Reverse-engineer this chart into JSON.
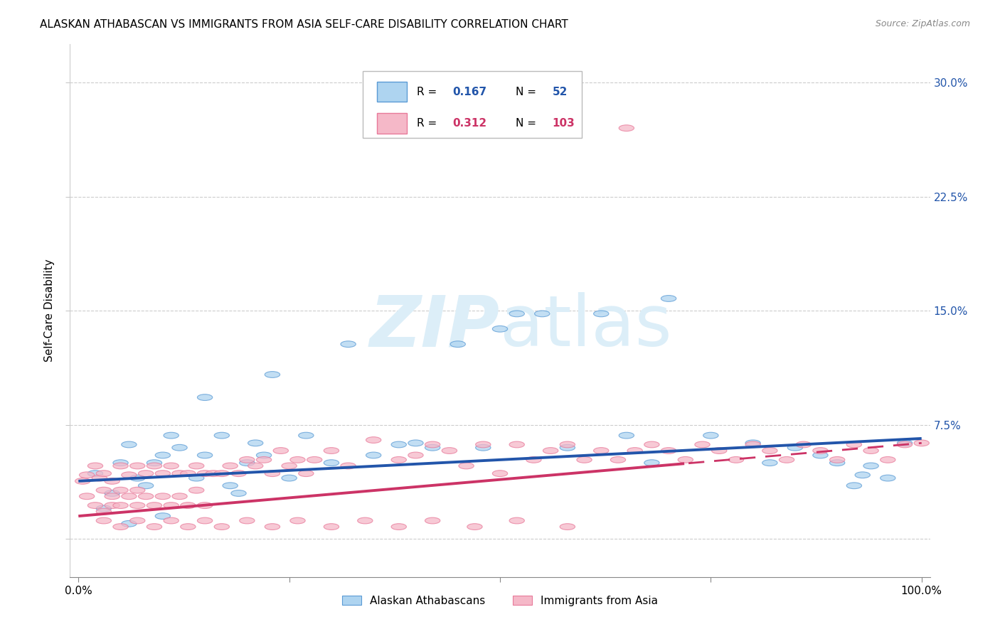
{
  "title": "ALASKAN ATHABASCAN VS IMMIGRANTS FROM ASIA SELF-CARE DISABILITY CORRELATION CHART",
  "source": "Source: ZipAtlas.com",
  "ylabel": "Self-Care Disability",
  "xlim": [
    -0.01,
    1.01
  ],
  "ylim": [
    -0.025,
    0.325
  ],
  "yticks": [
    0.0,
    0.075,
    0.15,
    0.225,
    0.3
  ],
  "ytick_labels_right": [
    "",
    "7.5%",
    "15.0%",
    "22.5%",
    "30.0%"
  ],
  "xticks": [
    0.0,
    0.25,
    0.5,
    0.75,
    1.0
  ],
  "xtick_labels": [
    "0.0%",
    "",
    "",
    "",
    "100.0%"
  ],
  "blue_R": 0.167,
  "blue_N": 52,
  "pink_R": 0.312,
  "pink_N": 103,
  "blue_color": "#aed4f0",
  "pink_color": "#f5b8c8",
  "blue_edge_color": "#5b9bd5",
  "pink_edge_color": "#e87a9a",
  "blue_line_color": "#2255aa",
  "pink_line_color": "#cc3366",
  "watermark_color": "#dceef8",
  "legend_label_blue": "Alaskan Athabascans",
  "legend_label_pink": "Immigrants from Asia",
  "blue_line_intercept": 0.038,
  "blue_line_slope": 0.028,
  "pink_line_intercept": 0.015,
  "pink_line_slope": 0.048,
  "blue_scatter_x": [
    0.02,
    0.03,
    0.04,
    0.05,
    0.06,
    0.06,
    0.07,
    0.08,
    0.09,
    0.1,
    0.1,
    0.11,
    0.12,
    0.14,
    0.15,
    0.15,
    0.17,
    0.18,
    0.19,
    0.2,
    0.21,
    0.22,
    0.23,
    0.25,
    0.27,
    0.3,
    0.32,
    0.35,
    0.38,
    0.4,
    0.42,
    0.45,
    0.48,
    0.5,
    0.52,
    0.55,
    0.58,
    0.62,
    0.65,
    0.68,
    0.7,
    0.75,
    0.8,
    0.82,
    0.85,
    0.88,
    0.9,
    0.92,
    0.93,
    0.94,
    0.96,
    0.98
  ],
  "blue_scatter_y": [
    0.043,
    0.02,
    0.03,
    0.05,
    0.01,
    0.062,
    0.04,
    0.035,
    0.05,
    0.055,
    0.015,
    0.068,
    0.06,
    0.04,
    0.055,
    0.093,
    0.068,
    0.035,
    0.03,
    0.05,
    0.063,
    0.055,
    0.108,
    0.04,
    0.068,
    0.05,
    0.128,
    0.055,
    0.062,
    0.063,
    0.06,
    0.128,
    0.06,
    0.138,
    0.148,
    0.148,
    0.06,
    0.148,
    0.068,
    0.05,
    0.158,
    0.068,
    0.063,
    0.05,
    0.06,
    0.055,
    0.05,
    0.035,
    0.042,
    0.048,
    0.04,
    0.063
  ],
  "pink_scatter_x": [
    0.005,
    0.01,
    0.01,
    0.02,
    0.02,
    0.025,
    0.03,
    0.03,
    0.03,
    0.04,
    0.04,
    0.04,
    0.05,
    0.05,
    0.05,
    0.06,
    0.06,
    0.07,
    0.07,
    0.07,
    0.08,
    0.08,
    0.09,
    0.09,
    0.1,
    0.1,
    0.11,
    0.11,
    0.12,
    0.12,
    0.13,
    0.13,
    0.14,
    0.14,
    0.15,
    0.15,
    0.16,
    0.17,
    0.18,
    0.19,
    0.2,
    0.21,
    0.22,
    0.23,
    0.24,
    0.25,
    0.26,
    0.27,
    0.28,
    0.3,
    0.32,
    0.35,
    0.38,
    0.4,
    0.42,
    0.44,
    0.46,
    0.48,
    0.5,
    0.52,
    0.54,
    0.56,
    0.58,
    0.6,
    0.62,
    0.64,
    0.66,
    0.68,
    0.7,
    0.72,
    0.74,
    0.76,
    0.78,
    0.8,
    0.82,
    0.84,
    0.86,
    0.88,
    0.9,
    0.92,
    0.94,
    0.96,
    0.98,
    1.0,
    0.03,
    0.05,
    0.07,
    0.09,
    0.11,
    0.13,
    0.15,
    0.17,
    0.2,
    0.23,
    0.26,
    0.3,
    0.34,
    0.38,
    0.42,
    0.47,
    0.52,
    0.58,
    0.65
  ],
  "pink_scatter_y": [
    0.038,
    0.042,
    0.028,
    0.048,
    0.022,
    0.04,
    0.043,
    0.032,
    0.018,
    0.038,
    0.028,
    0.022,
    0.048,
    0.032,
    0.022,
    0.042,
    0.028,
    0.048,
    0.032,
    0.022,
    0.043,
    0.028,
    0.048,
    0.022,
    0.043,
    0.028,
    0.048,
    0.022,
    0.043,
    0.028,
    0.043,
    0.022,
    0.048,
    0.032,
    0.043,
    0.022,
    0.043,
    0.043,
    0.048,
    0.043,
    0.052,
    0.048,
    0.052,
    0.043,
    0.058,
    0.048,
    0.052,
    0.043,
    0.052,
    0.058,
    0.048,
    0.065,
    0.052,
    0.055,
    0.062,
    0.058,
    0.048,
    0.062,
    0.043,
    0.062,
    0.052,
    0.058,
    0.062,
    0.052,
    0.058,
    0.052,
    0.058,
    0.062,
    0.058,
    0.052,
    0.062,
    0.058,
    0.052,
    0.062,
    0.058,
    0.052,
    0.062,
    0.058,
    0.052,
    0.062,
    0.058,
    0.052,
    0.062,
    0.063,
    0.012,
    0.008,
    0.012,
    0.008,
    0.012,
    0.008,
    0.012,
    0.008,
    0.012,
    0.008,
    0.012,
    0.008,
    0.012,
    0.008,
    0.012,
    0.008,
    0.012,
    0.008,
    0.27
  ]
}
